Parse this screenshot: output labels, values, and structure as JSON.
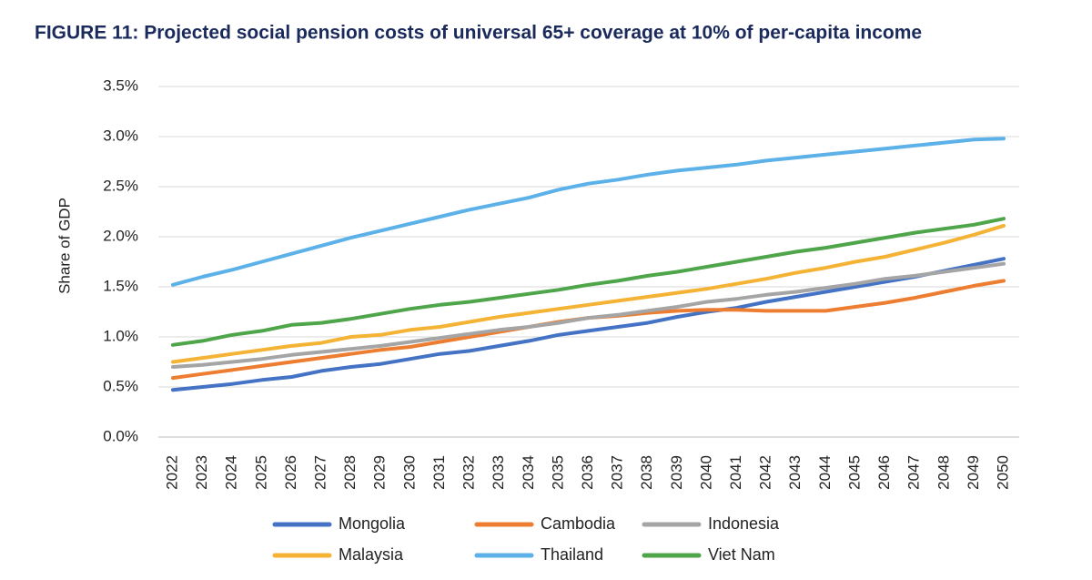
{
  "chart_data": {
    "type": "line",
    "title": "FIGURE 11: Projected social pension costs of universal 65+ coverage at 10% of per-capita income",
    "y_label": "Share of GDP",
    "categories": [
      "2022",
      "2023",
      "2024",
      "2025",
      "2026",
      "2027",
      "2028",
      "2029",
      "2030",
      "2031",
      "2032",
      "2033",
      "2034",
      "2035",
      "2036",
      "2037",
      "2038",
      "2039",
      "2040",
      "2041",
      "2042",
      "2043",
      "2044",
      "2045",
      "2046",
      "2047",
      "2048",
      "2049",
      "2050"
    ],
    "ylim": [
      0,
      3.5
    ],
    "yticks": [
      {
        "value": 0,
        "label": "0.0%"
      },
      {
        "value": 0.5,
        "label": "0.5%"
      },
      {
        "value": 1,
        "label": "1.0%"
      },
      {
        "value": 1.5,
        "label": "1.5%"
      },
      {
        "value": 2,
        "label": "2.0%"
      },
      {
        "value": 2.5,
        "label": "2.5%"
      },
      {
        "value": 3,
        "label": "3.0%"
      },
      {
        "value": 3.5,
        "label": "3.5%"
      }
    ],
    "grid": true,
    "legend": "bottom",
    "series": [
      {
        "name": "Mongolia",
        "color": "#4472c4",
        "values": [
          0.47,
          0.5,
          0.53,
          0.57,
          0.6,
          0.66,
          0.7,
          0.73,
          0.78,
          0.83,
          0.86,
          0.91,
          0.96,
          1.02,
          1.06,
          1.1,
          1.14,
          1.2,
          1.25,
          1.29,
          1.35,
          1.4,
          1.45,
          1.5,
          1.55,
          1.6,
          1.66,
          1.72,
          1.78
        ]
      },
      {
        "name": "Cambodia",
        "color": "#ed7d31",
        "values": [
          0.59,
          0.63,
          0.67,
          0.71,
          0.75,
          0.79,
          0.83,
          0.87,
          0.9,
          0.95,
          1.0,
          1.05,
          1.1,
          1.15,
          1.19,
          1.21,
          1.24,
          1.26,
          1.27,
          1.27,
          1.26,
          1.26,
          1.26,
          1.3,
          1.34,
          1.39,
          1.45,
          1.51,
          1.56
        ]
      },
      {
        "name": "Indonesia",
        "color": "#a5a5a5",
        "values": [
          0.7,
          0.72,
          0.75,
          0.78,
          0.82,
          0.85,
          0.88,
          0.91,
          0.95,
          0.99,
          1.03,
          1.07,
          1.1,
          1.14,
          1.19,
          1.22,
          1.26,
          1.3,
          1.35,
          1.38,
          1.42,
          1.45,
          1.49,
          1.53,
          1.58,
          1.61,
          1.65,
          1.69,
          1.73
        ]
      },
      {
        "name": "Malaysia",
        "color": "#f5b335",
        "values": [
          0.75,
          0.79,
          0.83,
          0.87,
          0.91,
          0.94,
          1.0,
          1.02,
          1.07,
          1.1,
          1.15,
          1.2,
          1.24,
          1.28,
          1.32,
          1.36,
          1.4,
          1.44,
          1.48,
          1.53,
          1.58,
          1.64,
          1.69,
          1.75,
          1.8,
          1.87,
          1.94,
          2.02,
          2.11
        ]
      },
      {
        "name": "Thailand",
        "color": "#5bb1e8",
        "values": [
          1.52,
          1.6,
          1.67,
          1.75,
          1.83,
          1.91,
          1.99,
          2.06,
          2.13,
          2.2,
          2.27,
          2.33,
          2.39,
          2.47,
          2.53,
          2.57,
          2.62,
          2.66,
          2.69,
          2.72,
          2.76,
          2.79,
          2.82,
          2.85,
          2.88,
          2.91,
          2.94,
          2.97,
          2.98
        ]
      },
      {
        "name": "Viet Nam",
        "color": "#4ea54a",
        "values": [
          0.92,
          0.96,
          1.02,
          1.06,
          1.12,
          1.14,
          1.18,
          1.23,
          1.28,
          1.32,
          1.35,
          1.39,
          1.43,
          1.47,
          1.52,
          1.56,
          1.61,
          1.65,
          1.7,
          1.75,
          1.8,
          1.85,
          1.89,
          1.94,
          1.99,
          2.04,
          2.08,
          2.12,
          2.18
        ]
      }
    ]
  }
}
